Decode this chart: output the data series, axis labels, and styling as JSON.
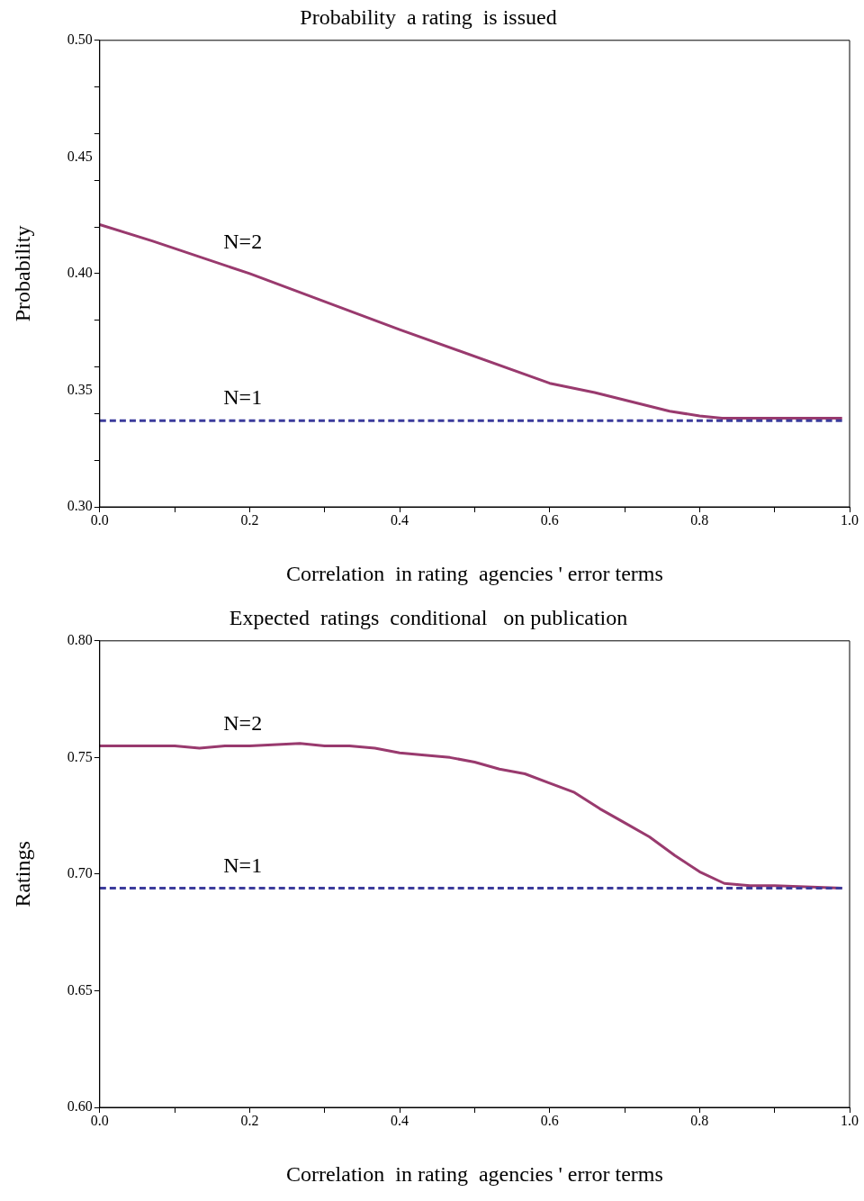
{
  "chart_data": [
    {
      "type": "line",
      "title": "Probability  a rating  is issued",
      "xlabel": "Correlation  in rating  agencies ' error terms",
      "ylabel": "Probability",
      "xlim": [
        0,
        1
      ],
      "ylim": [
        0.3,
        0.5
      ],
      "xticks": [
        {
          "value": 0,
          "label": "0.0"
        },
        {
          "value": 0.2,
          "label": "0.2"
        },
        {
          "value": 0.4,
          "label": "0.4"
        },
        {
          "value": 0.6,
          "label": "0.6"
        },
        {
          "value": 0.8,
          "label": "0.8"
        },
        {
          "value": 1,
          "label": "1.0"
        }
      ],
      "yticks": [
        {
          "value": 0.3,
          "label": "0.30"
        },
        {
          "value": 0.35,
          "label": "0.35"
        },
        {
          "value": 0.4,
          "label": "0.40"
        },
        {
          "value": 0.45,
          "label": "0.45"
        },
        {
          "value": 0.5,
          "label": "0.50"
        }
      ],
      "grid": false,
      "legend": false,
      "marker": "none",
      "series": [
        {
          "name": "N=2",
          "color": "#993a6e",
          "line_style": "solid",
          "x": [
            0,
            0.07,
            0.2,
            0.4,
            0.6,
            0.66,
            0.76,
            0.8,
            0.83,
            0.99
          ],
          "values": [
            0.421,
            0.414,
            0.4,
            0.376,
            0.353,
            0.349,
            0.341,
            0.339,
            0.338,
            0.338
          ]
        },
        {
          "name": "N=1",
          "color": "#3c3c9c",
          "line_style": "dashed",
          "x": [
            0,
            0.99
          ],
          "values": [
            0.337,
            0.337
          ]
        }
      ]
    },
    {
      "type": "line",
      "title": "Expected  ratings  conditional   on publication",
      "xlabel": "Correlation  in rating  agencies ' error terms",
      "ylabel": "Ratings",
      "xlim": [
        0,
        1
      ],
      "ylim": [
        0.6,
        0.8
      ],
      "xticks": [
        {
          "value": 0,
          "label": "0.0"
        },
        {
          "value": 0.2,
          "label": "0.2"
        },
        {
          "value": 0.4,
          "label": "0.4"
        },
        {
          "value": 0.6,
          "label": "0.6"
        },
        {
          "value": 0.8,
          "label": "0.8"
        },
        {
          "value": 1,
          "label": "1.0"
        }
      ],
      "yticks": [
        {
          "value": 0.6,
          "label": "0.60"
        },
        {
          "value": 0.65,
          "label": "0.65"
        },
        {
          "value": 0.7,
          "label": "0.70"
        },
        {
          "value": 0.75,
          "label": "0.75"
        },
        {
          "value": 0.8,
          "label": "0.80"
        }
      ],
      "grid": false,
      "legend": false,
      "marker": "none",
      "series": [
        {
          "name": "N=2",
          "color": "#993a6e",
          "line_style": "solid",
          "x": [
            0,
            0.1,
            0.133,
            0.167,
            0.2,
            0.267,
            0.3,
            0.333,
            0.367,
            0.4,
            0.433,
            0.467,
            0.5,
            0.533,
            0.567,
            0.6,
            0.633,
            0.667,
            0.7,
            0.733,
            0.767,
            0.8,
            0.833,
            0.867,
            0.9,
            0.99
          ],
          "values": [
            0.755,
            0.755,
            0.754,
            0.755,
            0.755,
            0.756,
            0.755,
            0.755,
            0.754,
            0.752,
            0.751,
            0.75,
            0.748,
            0.745,
            0.743,
            0.739,
            0.735,
            0.728,
            0.722,
            0.716,
            0.708,
            0.701,
            0.696,
            0.695,
            0.695,
            0.694
          ]
        },
        {
          "name": "N=1",
          "color": "#3c3c9c",
          "line_style": "dashed",
          "x": [
            0,
            0.99
          ],
          "values": [
            0.694,
            0.694
          ]
        }
      ]
    }
  ]
}
